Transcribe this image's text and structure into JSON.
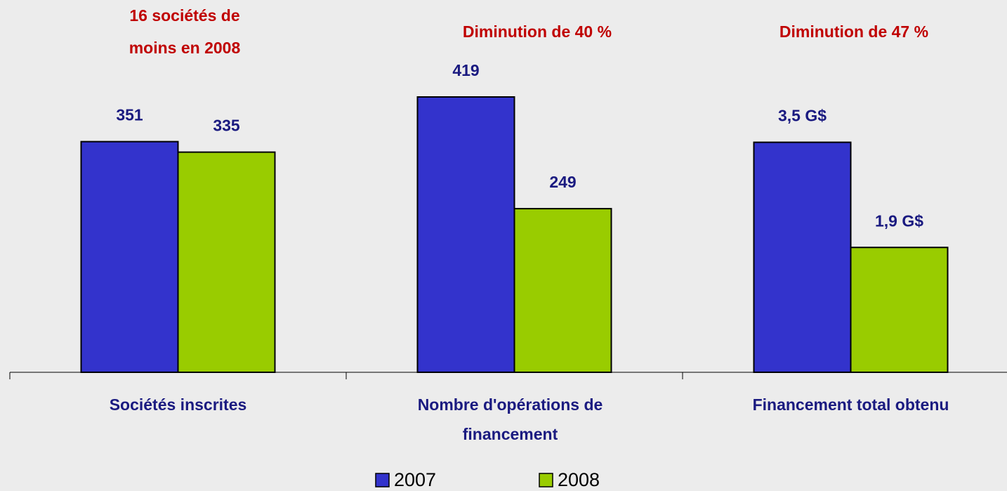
{
  "chart_data": {
    "type": "bar",
    "series": [
      {
        "name": "2007",
        "color": "#3333cc"
      },
      {
        "name": "2008",
        "color": "#99cc00"
      }
    ],
    "groups": [
      {
        "annotation": [
          "16 sociétés de",
          "moins en 2008"
        ],
        "category": [
          "Sociétés inscrites"
        ],
        "values": [
          351,
          335
        ],
        "value_labels": [
          "351",
          "335"
        ],
        "ylim": [
          0,
          450
        ]
      },
      {
        "annotation": [
          "Diminution de 40 %"
        ],
        "category": [
          "Nombre d'opérations de",
          "financement"
        ],
        "values": [
          419,
          249
        ],
        "value_labels": [
          "419",
          "249"
        ],
        "ylim": [
          0,
          450
        ]
      },
      {
        "annotation": [
          "Diminution de 47 %"
        ],
        "category": [
          "Financement total obtenu"
        ],
        "values": [
          3.5,
          1.9
        ],
        "value_labels": [
          "3,5 G$",
          "1,9 G$"
        ],
        "ylim": [
          0,
          4.5
        ]
      }
    ]
  }
}
